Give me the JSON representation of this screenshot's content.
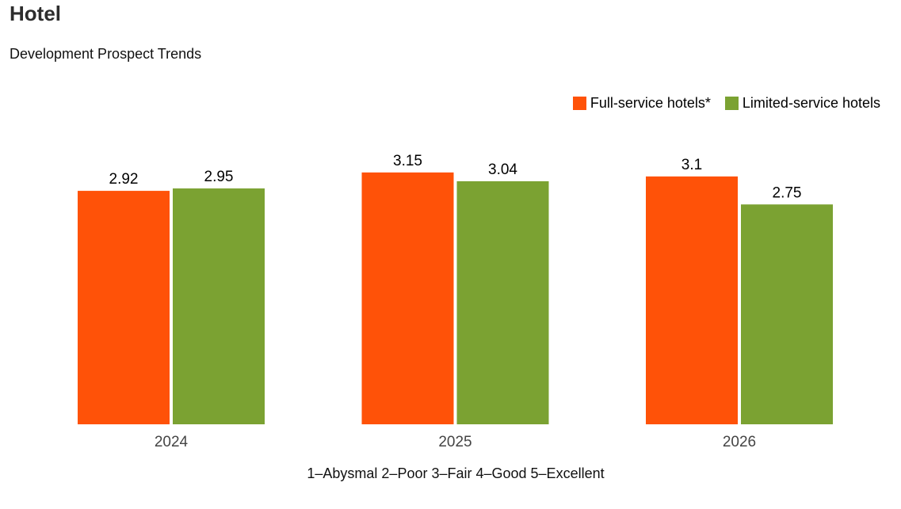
{
  "chart_data": {
    "type": "bar",
    "title": "Hotel",
    "subtitle": "Development Prospect Trends",
    "categories": [
      "2024",
      "2025",
      "2026"
    ],
    "series": [
      {
        "name": "Full-service hotels*",
        "color": "#FF5208",
        "values": [
          2.92,
          3.15,
          3.1
        ]
      },
      {
        "name": "Limited-service hotels",
        "color": "#7BA232",
        "values": [
          2.95,
          3.04,
          2.75
        ]
      }
    ],
    "value_labels": [
      [
        "2.92",
        "3.15",
        "3.1"
      ],
      [
        "2.95",
        "3.04",
        "2.75"
      ]
    ],
    "ylim": [
      0,
      4
    ],
    "grid": false,
    "legend_position": "top-right",
    "footnote": "1–Abysmal 2–Poor 3–Fair 4–Good 5–Excellent"
  }
}
